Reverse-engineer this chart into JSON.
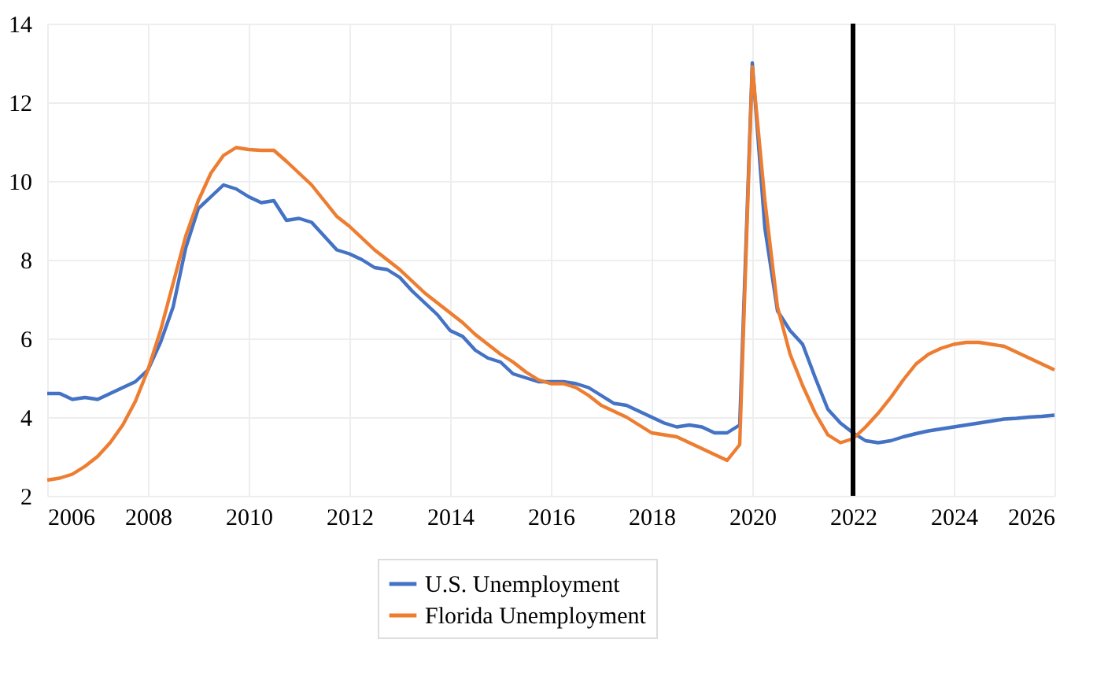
{
  "chart_data": {
    "type": "line",
    "x": [
      2006,
      2006.25,
      2006.5,
      2006.75,
      2007,
      2007.25,
      2007.5,
      2007.75,
      2008,
      2008.25,
      2008.5,
      2008.75,
      2009,
      2009.25,
      2009.5,
      2009.75,
      2010,
      2010.25,
      2010.5,
      2010.75,
      2011,
      2011.25,
      2011.5,
      2011.75,
      2012,
      2012.25,
      2012.5,
      2012.75,
      2013,
      2013.25,
      2013.5,
      2013.75,
      2014,
      2014.25,
      2014.5,
      2014.75,
      2015,
      2015.25,
      2015.5,
      2015.75,
      2016,
      2016.25,
      2016.5,
      2016.75,
      2017,
      2017.25,
      2017.5,
      2017.75,
      2018,
      2018.25,
      2018.5,
      2018.75,
      2019,
      2019.25,
      2019.5,
      2019.75,
      2020,
      2020.25,
      2020.5,
      2020.75,
      2021,
      2021.25,
      2021.5,
      2021.75,
      2022,
      2022.25,
      2022.5,
      2022.75,
      2023,
      2023.25,
      2023.5,
      2023.75,
      2024,
      2024.25,
      2024.5,
      2024.75,
      2025,
      2025.25,
      2025.5,
      2025.75,
      2026
    ],
    "series": [
      {
        "name": "U.S. Unemployment",
        "color": "#4472c4",
        "values": [
          4.6,
          4.6,
          4.45,
          4.5,
          4.45,
          4.6,
          4.75,
          4.9,
          5.2,
          5.9,
          6.8,
          8.3,
          9.3,
          9.6,
          9.9,
          9.8,
          9.6,
          9.45,
          9.5,
          9.0,
          9.05,
          8.95,
          8.6,
          8.25,
          8.15,
          8.0,
          7.8,
          7.75,
          7.55,
          7.2,
          6.9,
          6.6,
          6.2,
          6.05,
          5.7,
          5.5,
          5.4,
          5.1,
          5.0,
          4.9,
          4.9,
          4.9,
          4.85,
          4.75,
          4.55,
          4.35,
          4.3,
          4.15,
          4.0,
          3.85,
          3.75,
          3.8,
          3.75,
          3.6,
          3.6,
          3.8,
          13.0,
          8.8,
          6.7,
          6.2,
          5.85,
          5.0,
          4.2,
          3.85,
          3.6,
          3.4,
          3.35,
          3.4,
          3.5,
          3.58,
          3.65,
          3.7,
          3.75,
          3.8,
          3.85,
          3.9,
          3.95,
          3.97,
          4.0,
          4.02,
          4.05
        ]
      },
      {
        "name": "Florida Unemployment",
        "color": "#ed7d31",
        "values": [
          2.4,
          2.45,
          2.55,
          2.75,
          3.0,
          3.35,
          3.8,
          4.4,
          5.2,
          6.2,
          7.4,
          8.6,
          9.5,
          10.2,
          10.65,
          10.85,
          10.8,
          10.78,
          10.78,
          10.5,
          10.2,
          9.9,
          9.5,
          9.1,
          8.85,
          8.55,
          8.25,
          8.0,
          7.75,
          7.45,
          7.15,
          6.9,
          6.65,
          6.4,
          6.1,
          5.85,
          5.6,
          5.4,
          5.15,
          4.95,
          4.85,
          4.85,
          4.75,
          4.55,
          4.3,
          4.15,
          4.0,
          3.8,
          3.6,
          3.55,
          3.5,
          3.35,
          3.2,
          3.05,
          2.9,
          3.3,
          12.9,
          9.5,
          6.8,
          5.6,
          4.8,
          4.1,
          3.55,
          3.35,
          3.45,
          3.75,
          4.1,
          4.5,
          4.95,
          5.35,
          5.6,
          5.75,
          5.85,
          5.9,
          5.9,
          5.85,
          5.8,
          5.65,
          5.5,
          5.35,
          5.2
        ]
      }
    ],
    "xlim": [
      2006,
      2026
    ],
    "xticks": [
      2006,
      2008,
      2010,
      2012,
      2014,
      2016,
      2018,
      2020,
      2022,
      2024,
      2026
    ],
    "ylim": [
      2,
      14
    ],
    "yticks": [
      2,
      4,
      6,
      8,
      10,
      12,
      14
    ],
    "ref_lines": [
      {
        "axis": "x",
        "value": 2022,
        "color": "#000000"
      }
    ],
    "grid": true,
    "legend": "bottom",
    "marker": "none",
    "line_style": "solid"
  }
}
